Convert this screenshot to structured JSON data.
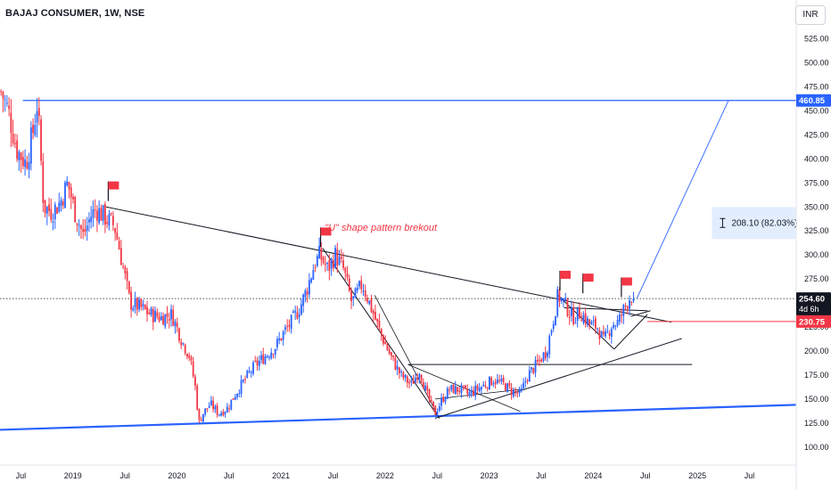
{
  "header": {
    "title": "BAJAJ CONSUMER, 1W, NSE",
    "currency": "INR"
  },
  "chart_data": {
    "type": "candlestick",
    "title": "BAJAJ CONSUMER, 1W, NSE",
    "currency": "INR",
    "x_axis": {
      "labels": [
        {
          "t": 2018.5,
          "label": "Jul"
        },
        {
          "t": 2019.0,
          "label": "2019"
        },
        {
          "t": 2019.5,
          "label": "Jul"
        },
        {
          "t": 2020.0,
          "label": "2020"
        },
        {
          "t": 2020.5,
          "label": "Jul"
        },
        {
          "t": 2021.0,
          "label": "2021"
        },
        {
          "t": 2021.5,
          "label": "Jul"
        },
        {
          "t": 2022.0,
          "label": "2022"
        },
        {
          "t": 2022.5,
          "label": "Jul"
        },
        {
          "t": 2023.0,
          "label": "2023"
        },
        {
          "t": 2023.5,
          "label": "Jul"
        },
        {
          "t": 2024.0,
          "label": "2024"
        },
        {
          "t": 2024.5,
          "label": "Jul"
        },
        {
          "t": 2025.0,
          "label": "2025"
        },
        {
          "t": 2025.5,
          "label": "Jul"
        }
      ],
      "range": [
        2018.3,
        2025.95
      ]
    },
    "y_axis": {
      "range": [
        85,
        545
      ],
      "ticks": [
        "525.00",
        "500.00",
        "475.00",
        "450.00",
        "425.00",
        "400.00",
        "375.00",
        "350.00",
        "325.00",
        "300.00",
        "275.00",
        "250.00",
        "225.00",
        "200.00",
        "175.00",
        "150.00",
        "125.00",
        "100.00"
      ]
    },
    "price_path": [
      [
        2018.31,
        470
      ],
      [
        2018.38,
        450
      ],
      [
        2018.46,
        410
      ],
      [
        2018.55,
        395
      ],
      [
        2018.62,
        430
      ],
      [
        2018.66,
        460
      ],
      [
        2018.72,
        350
      ],
      [
        2018.8,
        345
      ],
      [
        2018.88,
        355
      ],
      [
        2018.95,
        375
      ],
      [
        2019.02,
        345
      ],
      [
        2019.1,
        320
      ],
      [
        2019.17,
        340
      ],
      [
        2019.22,
        348
      ],
      [
        2019.3,
        340
      ],
      [
        2019.4,
        330
      ],
      [
        2019.45,
        305
      ],
      [
        2019.55,
        250
      ],
      [
        2019.65,
        245
      ],
      [
        2019.75,
        238
      ],
      [
        2019.85,
        235
      ],
      [
        2019.95,
        238
      ],
      [
        2020.05,
        210
      ],
      [
        2020.12,
        195
      ],
      [
        2020.18,
        160
      ],
      [
        2020.21,
        125
      ],
      [
        2020.25,
        135
      ],
      [
        2020.32,
        145
      ],
      [
        2020.4,
        135
      ],
      [
        2020.48,
        140
      ],
      [
        2020.56,
        155
      ],
      [
        2020.65,
        170
      ],
      [
        2020.75,
        185
      ],
      [
        2020.85,
        195
      ],
      [
        2020.95,
        205
      ],
      [
        2021.03,
        220
      ],
      [
        2021.1,
        230
      ],
      [
        2021.18,
        245
      ],
      [
        2021.25,
        265
      ],
      [
        2021.32,
        290
      ],
      [
        2021.37,
        300
      ],
      [
        2021.45,
        285
      ],
      [
        2021.52,
        300
      ],
      [
        2021.6,
        285
      ],
      [
        2021.68,
        250
      ],
      [
        2021.78,
        270
      ],
      [
        2021.85,
        250
      ],
      [
        2021.95,
        220
      ],
      [
        2022.05,
        195
      ],
      [
        2022.15,
        175
      ],
      [
        2022.25,
        165
      ],
      [
        2022.33,
        180
      ],
      [
        2022.4,
        155
      ],
      [
        2022.48,
        135
      ],
      [
        2022.55,
        150
      ],
      [
        2022.62,
        160
      ],
      [
        2022.72,
        160
      ],
      [
        2022.8,
        155
      ],
      [
        2022.88,
        160
      ],
      [
        2022.96,
        165
      ],
      [
        2023.04,
        170
      ],
      [
        2023.14,
        165
      ],
      [
        2023.22,
        158
      ],
      [
        2023.3,
        155
      ],
      [
        2023.37,
        175
      ],
      [
        2023.45,
        185
      ],
      [
        2023.55,
        200
      ],
      [
        2023.62,
        235
      ],
      [
        2023.66,
        258
      ],
      [
        2023.72,
        250
      ],
      [
        2023.8,
        235
      ],
      [
        2023.88,
        240
      ],
      [
        2023.96,
        228
      ],
      [
        2024.04,
        225
      ],
      [
        2024.1,
        210
      ],
      [
        2024.18,
        228
      ],
      [
        2024.24,
        230
      ],
      [
        2024.3,
        245
      ],
      [
        2024.36,
        258
      ],
      [
        2024.4,
        254.6
      ]
    ],
    "annotations": {
      "label": "\"U\" shape pattern brekout",
      "measure_label": "208.10 (82.03%)",
      "price_tags": [
        {
          "value": 460.85,
          "label": "460.85",
          "color": "#2962ff",
          "line_from": 2018.52
        },
        {
          "value": 254.6,
          "label": "254.60",
          "sub": "4d 6h",
          "color": "#131722"
        },
        {
          "value": 230.75,
          "label": "230.75",
          "color": "#f23645",
          "line_from": 2024.52
        }
      ],
      "flags": [
        {
          "t": 2019.34,
          "price": 358
        },
        {
          "t": 2021.38,
          "price": 310
        },
        {
          "t": 2023.68,
          "price": 265
        },
        {
          "t": 2023.9,
          "price": 262
        },
        {
          "t": 2024.27,
          "price": 258
        }
      ],
      "colors": {
        "up": "#2962ff",
        "down": "#f23645",
        "trend": "#131722",
        "support": "#2962ff",
        "target": "#2962ff"
      }
    }
  }
}
